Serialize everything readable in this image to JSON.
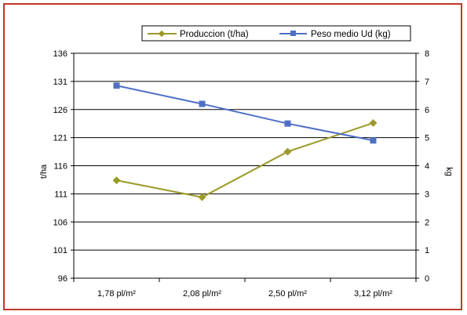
{
  "chart_data": {
    "type": "line",
    "categories": [
      "1,78 pl/m²",
      "2,08 pl/m²",
      "2,50 pl/m²",
      "3,12 pl/m²"
    ],
    "series": [
      {
        "name": "Produccion (t/ha)",
        "axis": "left",
        "color": "#9a9a2a",
        "marker": "diamond",
        "values": [
          113.4,
          110.4,
          118.5,
          123.6
        ]
      },
      {
        "name": "Peso medio Ud (kg)",
        "axis": "right",
        "color": "#4f6fc4",
        "marker": "square",
        "values": [
          6.85,
          6.2,
          5.5,
          4.9
        ]
      }
    ],
    "ylabel": "t/ha",
    "y2label": "kg",
    "ylim": [
      96,
      136
    ],
    "y2lim": [
      0,
      8
    ],
    "yticks": [
      "96",
      "101",
      "106",
      "111",
      "116",
      "121",
      "126",
      "131",
      "136"
    ],
    "y2ticks": [
      "0",
      "1",
      "2",
      "3",
      "4",
      "5",
      "6",
      "7",
      "8"
    ],
    "grid": "horizontal",
    "legend_position": "top"
  }
}
